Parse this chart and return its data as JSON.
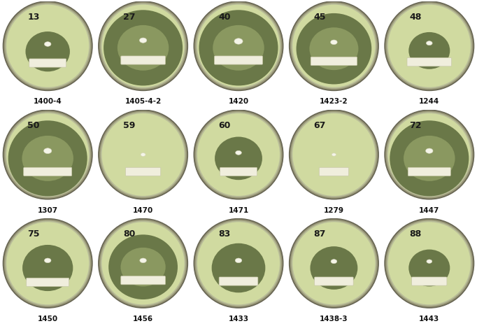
{
  "grid_rows": 3,
  "grid_cols": 5,
  "background_color": "#ffffff",
  "cell_bg_color": "#1a1a1a",
  "plate_agar_color": "#d4dea8",
  "plate_rim_color": "#8a8870",
  "plate_rim_inner_color": "#b8bc98",
  "cell_labels": [
    [
      "13",
      "27",
      "40",
      "45",
      "48"
    ],
    [
      "50",
      "59",
      "60",
      "67",
      "72"
    ],
    [
      "75",
      "80",
      "83",
      "87",
      "88"
    ]
  ],
  "clone_labels": [
    [
      "1400-4",
      "1405-4-2",
      "1420",
      "1423-2",
      "1244"
    ],
    [
      "1307",
      "1470",
      "1471",
      "1279",
      "1447"
    ],
    [
      "1450",
      "1456",
      "1433",
      "1438-3",
      "1443"
    ]
  ],
  "clear_zone_sizes": [
    [
      0.12,
      0.38,
      0.42,
      0.32,
      0.1
    ],
    [
      0.45,
      0.04,
      0.14,
      0.03,
      0.36
    ],
    [
      0.16,
      0.28,
      0.18,
      0.14,
      0.1
    ]
  ],
  "strip_widths": [
    [
      0.38,
      0.46,
      0.5,
      0.48,
      0.46
    ],
    [
      0.5,
      0.36,
      0.38,
      0.3,
      0.44
    ],
    [
      0.44,
      0.46,
      0.4,
      0.4,
      0.36
    ]
  ],
  "dot_sizes": [
    [
      0.055,
      0.06,
      0.07,
      0.055,
      0.05
    ],
    [
      0.065,
      0.04,
      0.05,
      0.035,
      0.06
    ],
    [
      0.055,
      0.055,
      0.055,
      0.05,
      0.045
    ]
  ],
  "dot_y_positions": [
    [
      0.54,
      0.58,
      0.57,
      0.56,
      0.55
    ],
    [
      0.56,
      0.52,
      0.54,
      0.52,
      0.56
    ],
    [
      0.55,
      0.55,
      0.55,
      0.54,
      0.54
    ]
  ],
  "halo_y_positions": [
    [
      0.46,
      0.5,
      0.5,
      0.49,
      0.47
    ],
    [
      0.48,
      0.48,
      0.48,
      0.48,
      0.48
    ],
    [
      0.47,
      0.48,
      0.47,
      0.47,
      0.47
    ]
  ],
  "strip_y_positions": [
    [
      0.3,
      0.33,
      0.33,
      0.32,
      0.31
    ],
    [
      0.3,
      0.3,
      0.3,
      0.3,
      0.3
    ],
    [
      0.28,
      0.3,
      0.29,
      0.29,
      0.29
    ]
  ]
}
